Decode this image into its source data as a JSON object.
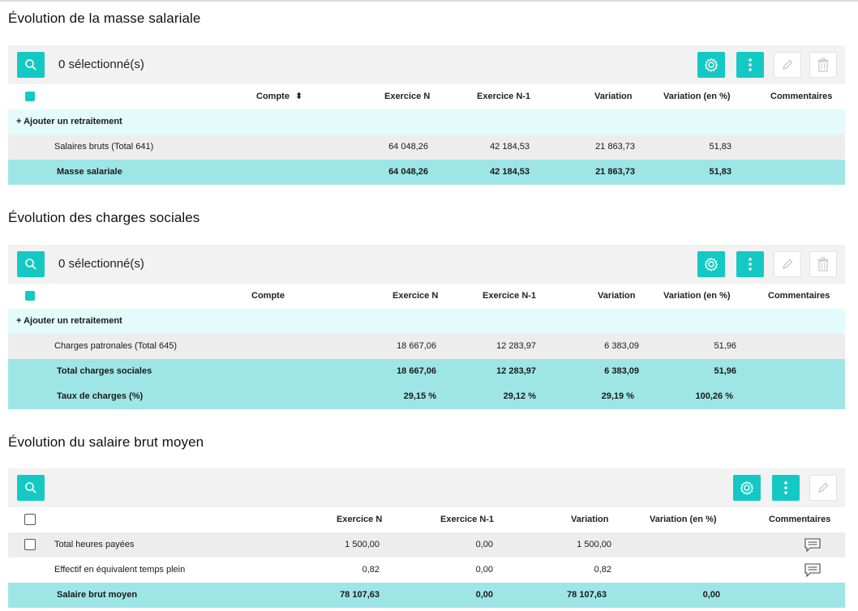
{
  "sections": [
    {
      "title": "Évolution de la masse salariale",
      "selected_label": "0 sélectionné(s)",
      "headers": {
        "compte": "Compte",
        "sort_icon": "⬍",
        "n": "Exercice N",
        "n1": "Exercice N-1",
        "var": "Variation",
        "varp": "Variation (en %)",
        "comm": "Commentaires"
      },
      "add_label": "+ Ajouter un retraitement",
      "rows": [
        {
          "label": "Salaires bruts (Total 641)",
          "n": "64 048,26",
          "n1": "42 184,53",
          "var": "21 863,73",
          "varp": "51,83"
        }
      ],
      "totals": [
        {
          "label": "Masse salariale",
          "n": "64 048,26",
          "n1": "42 184,53",
          "var": "21 863,73",
          "varp": "51,83"
        }
      ]
    },
    {
      "title": "Évolution des charges sociales",
      "selected_label": "0 sélectionné(s)",
      "headers": {
        "compte": "Compte",
        "n": "Exercice N",
        "n1": "Exercice N-1",
        "var": "Variation",
        "varp": "Variation (en %)",
        "comm": "Commentaires"
      },
      "add_label": "+ Ajouter un retraitement",
      "rows": [
        {
          "label": "Charges patronales (Total 645)",
          "n": "18 667,06",
          "n1": "12 283,97",
          "var": "6 383,09",
          "varp": "51,96"
        }
      ],
      "totals": [
        {
          "label": "Total charges sociales",
          "n": "18 667,06",
          "n1": "12 283,97",
          "var": "6 383,09",
          "varp": "51,96"
        },
        {
          "label": "Taux de charges (%)",
          "n": "29,15 %",
          "n1": "29,12 %",
          "var": "29,19 %",
          "varp": "100,26 %"
        }
      ]
    },
    {
      "title": "Évolution du salaire brut moyen",
      "headers": {
        "n": "Exercice N",
        "n1": "Exercice N-1",
        "var": "Variation",
        "varp": "Variation (en %)",
        "comm": "Commentaires"
      },
      "rows": [
        {
          "label": "Total heures payées",
          "n": "1 500,00",
          "n1": "0,00",
          "var": "1 500,00",
          "varp": ""
        },
        {
          "label": "Effectif en équivalent temps plein",
          "n": "0,82",
          "n1": "0,00",
          "var": "0,82",
          "varp": ""
        }
      ],
      "totals": [
        {
          "label": "Salaire brut moyen",
          "n": "78 107,63",
          "n1": "0,00",
          "var": "78 107,63",
          "varp": "0,00"
        }
      ]
    }
  ],
  "colors": {
    "accent": "#14c9c4",
    "total_row": "#9ee6e6",
    "add_row": "#e3fbfb",
    "data_row": "#ededed",
    "toolbar": "#f2f2f2"
  }
}
